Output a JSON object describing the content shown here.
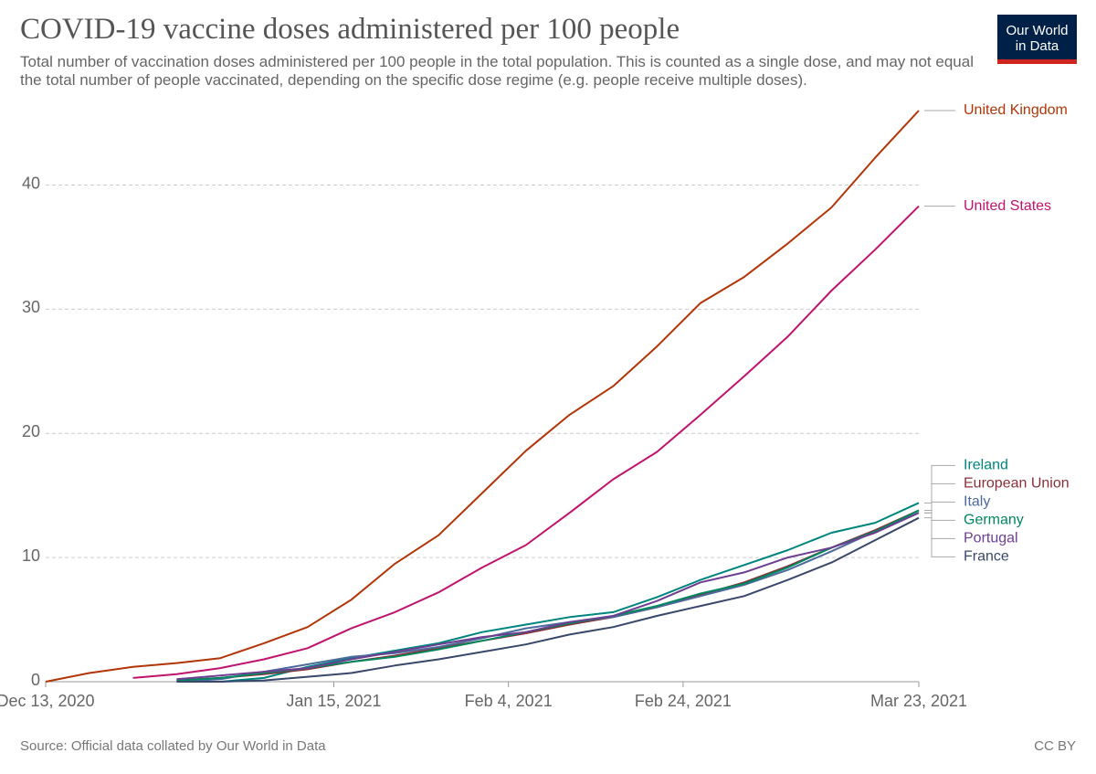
{
  "chart_data": {
    "type": "line",
    "title": "COVID-19 vaccine doses administered per 100 people",
    "subtitle": "Total number of vaccination doses administered per 100 people in the total population. This is counted as a single dose, and may not equal the total number of people vaccinated, depending on the specific dose regime (e.g. people receive multiple doses).",
    "logo": [
      "Our World",
      "in Data"
    ],
    "source": "Source: Official data collated by Our World in Data",
    "license": "CC BY",
    "x": [
      "2020-12-13",
      "2020-12-18",
      "2020-12-23",
      "2020-12-28",
      "2021-01-02",
      "2021-01-07",
      "2021-01-12",
      "2021-01-17",
      "2021-01-22",
      "2021-01-27",
      "2021-02-01",
      "2021-02-06",
      "2021-02-11",
      "2021-02-16",
      "2021-02-21",
      "2021-02-26",
      "2021-03-03",
      "2021-03-08",
      "2021-03-13",
      "2021-03-18",
      "2021-03-23"
    ],
    "xlim": [
      "2020-12-13",
      "2021-03-23"
    ],
    "xticks": [
      {
        "value": "2020-12-13",
        "label": "Dec 13, 2020"
      },
      {
        "value": "2021-01-15",
        "label": "Jan 15, 2021"
      },
      {
        "value": "2021-02-04",
        "label": "Feb 4, 2021"
      },
      {
        "value": "2021-02-24",
        "label": "Feb 24, 2021"
      },
      {
        "value": "2021-03-23",
        "label": "Mar 23, 2021"
      }
    ],
    "ylim": [
      0,
      46
    ],
    "yticks": [
      0,
      10,
      20,
      30,
      40
    ],
    "grid": true,
    "series": [
      {
        "name": "United Kingdom",
        "color": "#b13507",
        "values": [
          0,
          0.7,
          1.2,
          1.5,
          1.9,
          3.1,
          4.4,
          6.6,
          9.5,
          11.8,
          15.2,
          18.6,
          21.5,
          23.8,
          27.0,
          30.5,
          32.6,
          35.3,
          38.2,
          42.2,
          46.0
        ]
      },
      {
        "name": "United States",
        "color": "#c0136e",
        "values": [
          null,
          null,
          0.3,
          0.6,
          1.1,
          1.8,
          2.7,
          4.3,
          5.6,
          7.2,
          9.2,
          11.0,
          13.6,
          16.3,
          18.5,
          21.5,
          24.6,
          27.8,
          31.5,
          34.8,
          38.3
        ]
      },
      {
        "name": "Ireland",
        "color": "#00847e",
        "values": [
          null,
          null,
          null,
          null,
          0.0,
          0.3,
          1.2,
          1.9,
          2.5,
          3.1,
          4.0,
          4.6,
          5.2,
          5.6,
          6.8,
          8.2,
          9.4,
          10.6,
          12.0,
          12.8,
          14.4
        ]
      },
      {
        "name": "European Union",
        "color": "#883039",
        "values": [
          null,
          null,
          null,
          0.1,
          0.3,
          0.6,
          1.0,
          1.6,
          2.1,
          2.7,
          3.3,
          3.9,
          4.6,
          5.2,
          6.0,
          7.0,
          8.0,
          9.3,
          10.8,
          12.2,
          13.8
        ]
      },
      {
        "name": "Italy",
        "color": "#4c6a9c",
        "values": [
          null,
          null,
          null,
          0.0,
          0.2,
          0.8,
          1.4,
          2.0,
          2.3,
          2.8,
          3.5,
          4.3,
          4.8,
          5.2,
          6.0,
          6.9,
          7.8,
          9.0,
          10.5,
          12.1,
          13.6
        ]
      },
      {
        "name": "Germany",
        "color": "#00875e",
        "values": [
          null,
          null,
          null,
          0.1,
          0.3,
          0.7,
          1.1,
          1.6,
          2.0,
          2.6,
          3.3,
          4.0,
          4.7,
          5.3,
          6.1,
          7.1,
          7.9,
          9.2,
          10.8,
          12.1,
          13.8
        ]
      },
      {
        "name": "Portugal",
        "color": "#6d3e91",
        "values": [
          null,
          null,
          null,
          0.2,
          0.5,
          0.8,
          1.1,
          1.8,
          2.4,
          3.0,
          3.6,
          4.0,
          4.8,
          5.3,
          6.5,
          8.0,
          8.8,
          10.0,
          10.8,
          12.0,
          13.6
        ]
      },
      {
        "name": "France",
        "color": "#38476a",
        "values": [
          null,
          null,
          null,
          0.0,
          0.0,
          0.1,
          0.4,
          0.7,
          1.3,
          1.8,
          2.4,
          3.0,
          3.8,
          4.4,
          5.3,
          6.1,
          6.9,
          8.2,
          9.6,
          11.4,
          13.2
        ]
      }
    ]
  }
}
